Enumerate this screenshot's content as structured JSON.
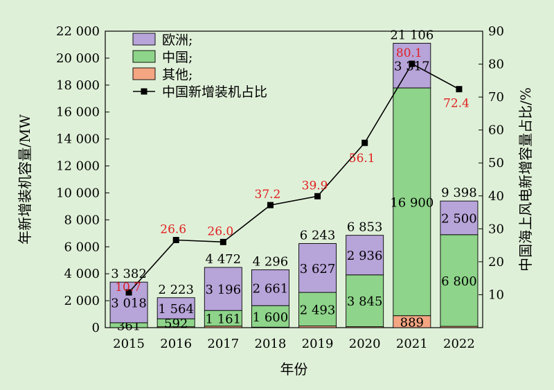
{
  "chart_data": {
    "type": "bar",
    "stacked": true,
    "xlabel": "年份",
    "ylabel_left": "年新增装机容量/MW",
    "ylabel_right": "中国海上风电新增容量占比/%",
    "categories": [
      "2015",
      "2016",
      "2017",
      "2018",
      "2019",
      "2020",
      "2021",
      "2022"
    ],
    "left_ylim": [
      0,
      22000
    ],
    "left_ticks": [
      "0",
      "2 000",
      "4 000",
      "6 000",
      "8 000",
      "10 000",
      "12 000",
      "14 000",
      "16 000",
      "18 000",
      "20 000",
      "22 000"
    ],
    "right_ylim": [
      0,
      90
    ],
    "right_ticks": [
      "10",
      "20",
      "30",
      "40",
      "50",
      "60",
      "70",
      "80",
      "90"
    ],
    "series": [
      {
        "name": "其他",
        "color": "#f4a582",
        "values": [
          3,
          67,
          115,
          35,
          123,
          72,
          889,
          98
        ],
        "labels": [
          "",
          "",
          "",
          "",
          "",
          "",
          "889",
          ""
        ]
      },
      {
        "name": "中国",
        "color": "#8ed48a",
        "values": [
          361,
          592,
          1161,
          1600,
          2493,
          3845,
          16900,
          6800
        ],
        "labels": [
          "361",
          "592",
          "1 161",
          "1 600",
          "2 493",
          "3 845",
          "16 900",
          "6 800"
        ]
      },
      {
        "name": "欧洲",
        "color": "#b7a4d9",
        "values": [
          3018,
          1564,
          3196,
          2661,
          3627,
          2936,
          3317,
          2500
        ],
        "labels": [
          "3 018",
          "1 564",
          "3 196",
          "2 661",
          "3 627",
          "2 936",
          "3 317",
          "2 500"
        ]
      }
    ],
    "totals": [
      "3 382",
      "2 223",
      "4 472",
      "4 296",
      "6 243",
      "6 853",
      "21 106",
      "9 398"
    ],
    "line": {
      "name": "中国新增装机占比",
      "color": "#000000",
      "label_color": "#e02020",
      "values": [
        10.7,
        26.6,
        26.0,
        37.2,
        39.9,
        56.1,
        80.1,
        72.4
      ],
      "labels": [
        "10.7",
        "26.6",
        "26.0",
        "37.2",
        "39.9",
        "56.1",
        "80.1",
        "72.4"
      ]
    },
    "legend": {
      "placement": "top-left",
      "items": [
        {
          "label": "欧洲;",
          "color": "#b7a4d9",
          "kind": "box"
        },
        {
          "label": "中国;",
          "color": "#8ed48a",
          "kind": "box"
        },
        {
          "label": "其他;",
          "color": "#f4a582",
          "kind": "box"
        },
        {
          "label": "中国新增装机占比",
          "color": "#000000",
          "kind": "line"
        }
      ]
    }
  }
}
